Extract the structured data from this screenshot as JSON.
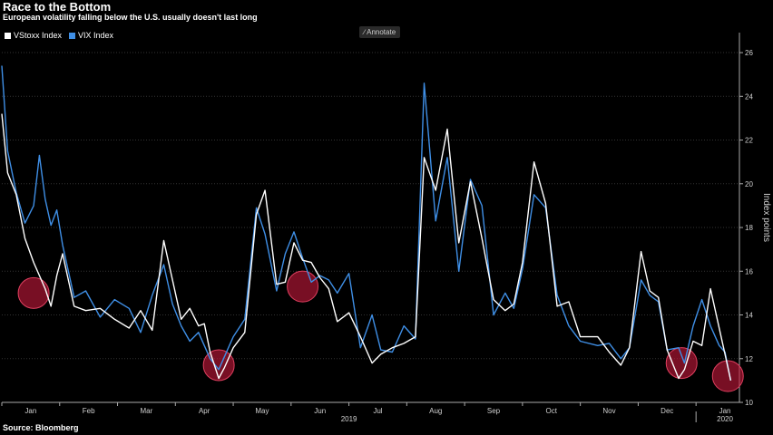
{
  "title": "Race to the Bottom",
  "subtitle": "European volatility falling below the U.S. usually doesn't last long",
  "source": "Source: Bloomberg",
  "annotate_label": "Annotate",
  "annotate_icon": "pencil-icon",
  "colors": {
    "vstoxx": "#ffffff",
    "vix": "#3f8fe6",
    "highlight": "#c8193c",
    "grid": "#333333"
  },
  "chart_data": {
    "type": "line",
    "ylabel": "Index points",
    "ylim": [
      10,
      26.5
    ],
    "yticks": [
      10,
      12,
      14,
      16,
      18,
      20,
      22,
      24,
      26
    ],
    "legend": "top-left",
    "grid": true,
    "months": [
      {
        "label": "Jan",
        "pos": 0.5
      },
      {
        "label": "Feb",
        "pos": 1.5
      },
      {
        "label": "Mar",
        "pos": 2.5
      },
      {
        "label": "Apr",
        "pos": 3.5
      },
      {
        "label": "May",
        "pos": 4.5
      },
      {
        "label": "Jun",
        "pos": 5.5
      },
      {
        "label": "Jul",
        "pos": 6.5
      },
      {
        "label": "Aug",
        "pos": 7.5
      },
      {
        "label": "Sep",
        "pos": 8.5
      },
      {
        "label": "Oct",
        "pos": 9.5
      },
      {
        "label": "Nov",
        "pos": 10.5
      },
      {
        "label": "Dec",
        "pos": 11.5
      },
      {
        "label": "Jan",
        "pos": 12.5
      }
    ],
    "years": [
      {
        "label": "2019",
        "pos": 6.0
      },
      {
        "label": "2020",
        "pos": 12.5
      }
    ],
    "series": [
      {
        "name": "VStoxx Index",
        "points": [
          [
            0.0,
            23.2
          ],
          [
            0.1,
            20.5
          ],
          [
            0.25,
            19.5
          ],
          [
            0.4,
            17.5
          ],
          [
            0.55,
            16.4
          ],
          [
            0.75,
            15.2
          ],
          [
            0.85,
            14.4
          ],
          [
            0.95,
            15.8
          ],
          [
            1.05,
            16.8
          ],
          [
            1.25,
            14.4
          ],
          [
            1.45,
            14.2
          ],
          [
            1.7,
            14.3
          ],
          [
            1.95,
            13.8
          ],
          [
            2.2,
            13.4
          ],
          [
            2.4,
            14.2
          ],
          [
            2.6,
            13.3
          ],
          [
            2.8,
            17.4
          ],
          [
            2.95,
            15.6
          ],
          [
            3.1,
            13.8
          ],
          [
            3.25,
            14.3
          ],
          [
            3.4,
            13.5
          ],
          [
            3.5,
            13.6
          ],
          [
            3.6,
            12.3
          ],
          [
            3.75,
            11.1
          ],
          [
            3.85,
            11.6
          ],
          [
            4.0,
            12.5
          ],
          [
            4.2,
            13.2
          ],
          [
            4.4,
            18.6
          ],
          [
            4.55,
            19.7
          ],
          [
            4.75,
            15.4
          ],
          [
            4.9,
            15.5
          ],
          [
            5.05,
            17.3
          ],
          [
            5.2,
            16.5
          ],
          [
            5.35,
            16.4
          ],
          [
            5.5,
            15.7
          ],
          [
            5.65,
            15.2
          ],
          [
            5.8,
            13.7
          ],
          [
            6.0,
            14.1
          ],
          [
            6.2,
            13.0
          ],
          [
            6.4,
            11.8
          ],
          [
            6.55,
            12.2
          ],
          [
            6.75,
            12.5
          ],
          [
            6.95,
            12.7
          ],
          [
            7.15,
            13.0
          ],
          [
            7.3,
            21.2
          ],
          [
            7.5,
            19.7
          ],
          [
            7.7,
            22.5
          ],
          [
            7.9,
            17.3
          ],
          [
            8.1,
            20.1
          ],
          [
            8.3,
            17.5
          ],
          [
            8.5,
            14.7
          ],
          [
            8.7,
            14.2
          ],
          [
            8.85,
            14.5
          ],
          [
            9.0,
            16.4
          ],
          [
            9.2,
            21.0
          ],
          [
            9.4,
            19.1
          ],
          [
            9.6,
            14.4
          ],
          [
            9.8,
            14.6
          ],
          [
            10.0,
            13.0
          ],
          [
            10.3,
            13.0
          ],
          [
            10.5,
            12.3
          ],
          [
            10.7,
            11.7
          ],
          [
            10.85,
            12.5
          ],
          [
            11.05,
            16.9
          ],
          [
            11.2,
            15.1
          ],
          [
            11.35,
            14.8
          ],
          [
            11.5,
            12.4
          ],
          [
            11.7,
            11.1
          ],
          [
            11.8,
            11.5
          ],
          [
            11.95,
            12.8
          ],
          [
            12.1,
            12.6
          ],
          [
            12.25,
            15.2
          ],
          [
            12.4,
            13.4
          ],
          [
            12.5,
            12.2
          ],
          [
            12.6,
            11.0
          ]
        ]
      },
      {
        "name": "VIX Index",
        "points": [
          [
            0.0,
            25.4
          ],
          [
            0.1,
            21.5
          ],
          [
            0.25,
            19.6
          ],
          [
            0.4,
            18.2
          ],
          [
            0.55,
            19.0
          ],
          [
            0.65,
            21.3
          ],
          [
            0.75,
            19.3
          ],
          [
            0.85,
            18.1
          ],
          [
            0.95,
            18.8
          ],
          [
            1.05,
            17.2
          ],
          [
            1.25,
            14.8
          ],
          [
            1.45,
            15.1
          ],
          [
            1.7,
            13.9
          ],
          [
            1.95,
            14.7
          ],
          [
            2.2,
            14.3
          ],
          [
            2.4,
            13.2
          ],
          [
            2.6,
            14.9
          ],
          [
            2.8,
            16.3
          ],
          [
            2.95,
            14.5
          ],
          [
            3.1,
            13.5
          ],
          [
            3.25,
            12.8
          ],
          [
            3.4,
            13.2
          ],
          [
            3.5,
            12.6
          ],
          [
            3.6,
            12.0
          ],
          [
            3.75,
            11.5
          ],
          [
            3.85,
            12.1
          ],
          [
            4.0,
            13.0
          ],
          [
            4.2,
            13.8
          ],
          [
            4.4,
            18.9
          ],
          [
            4.55,
            17.7
          ],
          [
            4.75,
            15.1
          ],
          [
            4.9,
            16.8
          ],
          [
            5.05,
            17.8
          ],
          [
            5.2,
            16.6
          ],
          [
            5.35,
            15.5
          ],
          [
            5.5,
            15.8
          ],
          [
            5.65,
            15.6
          ],
          [
            5.8,
            15.0
          ],
          [
            6.0,
            15.9
          ],
          [
            6.2,
            12.5
          ],
          [
            6.4,
            14.0
          ],
          [
            6.55,
            12.4
          ],
          [
            6.75,
            12.3
          ],
          [
            6.95,
            13.5
          ],
          [
            7.15,
            12.9
          ],
          [
            7.3,
            24.6
          ],
          [
            7.5,
            18.3
          ],
          [
            7.7,
            21.2
          ],
          [
            7.9,
            16.0
          ],
          [
            8.1,
            20.2
          ],
          [
            8.3,
            19.0
          ],
          [
            8.5,
            14.0
          ],
          [
            8.7,
            15.0
          ],
          [
            8.85,
            14.3
          ],
          [
            9.0,
            16.1
          ],
          [
            9.2,
            19.5
          ],
          [
            9.4,
            18.9
          ],
          [
            9.6,
            14.9
          ],
          [
            9.8,
            13.5
          ],
          [
            10.0,
            12.8
          ],
          [
            10.3,
            12.6
          ],
          [
            10.5,
            12.7
          ],
          [
            10.7,
            12.0
          ],
          [
            10.85,
            12.5
          ],
          [
            11.05,
            15.6
          ],
          [
            11.2,
            14.9
          ],
          [
            11.35,
            14.6
          ],
          [
            11.5,
            12.4
          ],
          [
            11.7,
            12.5
          ],
          [
            11.8,
            11.8
          ],
          [
            11.95,
            13.5
          ],
          [
            12.1,
            14.7
          ],
          [
            12.25,
            13.5
          ],
          [
            12.4,
            12.6
          ],
          [
            12.5,
            12.3
          ],
          [
            12.6,
            11.0
          ]
        ]
      }
    ],
    "highlights": [
      {
        "x": 0.55,
        "y": 15.0
      },
      {
        "x": 3.75,
        "y": 11.7
      },
      {
        "x": 5.2,
        "y": 15.3
      },
      {
        "x": 11.75,
        "y": 11.8
      },
      {
        "x": 12.55,
        "y": 11.2
      }
    ]
  }
}
